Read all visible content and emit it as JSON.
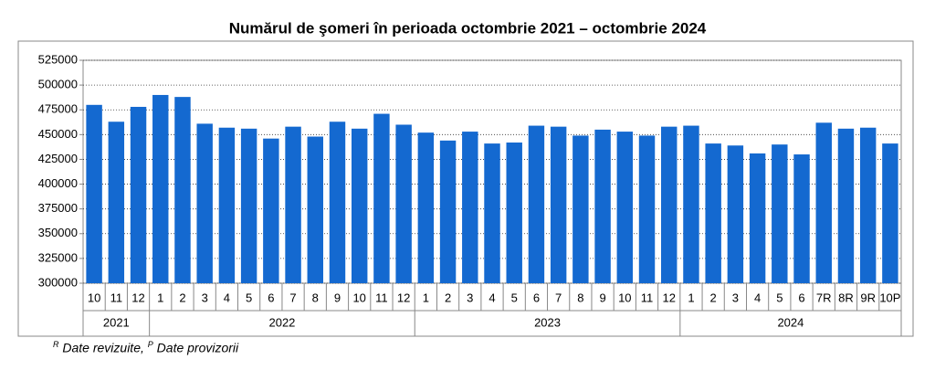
{
  "chart_data": {
    "type": "bar",
    "title": "Numărul de şomeri în perioada octombrie 2021 – octombrie 2024",
    "categories": [
      "10",
      "11",
      "12",
      "1",
      "2",
      "3",
      "4",
      "5",
      "6",
      "7",
      "8",
      "9",
      "10",
      "11",
      "12",
      "1",
      "2",
      "3",
      "4",
      "5",
      "6",
      "7",
      "8",
      "9",
      "10",
      "11",
      "12",
      "1",
      "2",
      "3",
      "4",
      "5",
      "6",
      "7R",
      "8R",
      "9R",
      "10P"
    ],
    "years": [
      "2021",
      "2022",
      "2023",
      "2024"
    ],
    "values": [
      480000,
      463000,
      478000,
      490000,
      488000,
      461000,
      457000,
      456000,
      446000,
      458000,
      448000,
      463000,
      456000,
      471000,
      460000,
      452000,
      444000,
      453000,
      441000,
      442000,
      459000,
      458000,
      449000,
      455000,
      453000,
      449000,
      458000,
      459000,
      441000,
      439000,
      431000,
      440000,
      430000,
      462000,
      456000,
      457000,
      441000
    ],
    "color": "#1469d0",
    "ylim": [
      300000,
      525000
    ],
    "yticks": [
      300000,
      325000,
      350000,
      375000,
      400000,
      425000,
      450000,
      475000,
      500000,
      525000
    ],
    "grid": true,
    "footnote": {
      "revised_mark": "R",
      "revised_text": "Date revizuite,",
      "provisional_mark": "P",
      "provisional_text": "Date provizorii"
    }
  }
}
